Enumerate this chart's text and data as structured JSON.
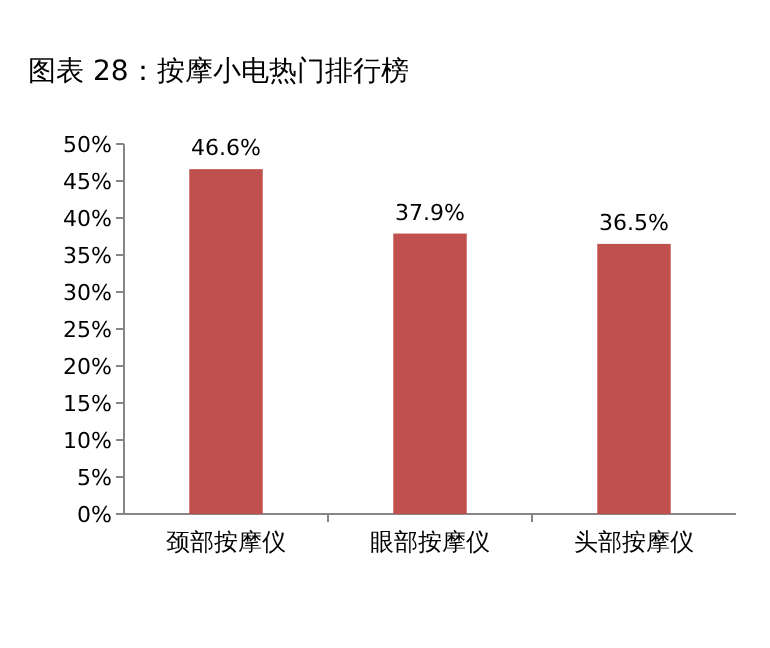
{
  "chart_data": {
    "type": "bar",
    "title": "图表 28：按摩小电热门排行榜",
    "categories": [
      "颈部按摩仪",
      "眼部按摩仪",
      "头部按摩仪"
    ],
    "values": [
      46.6,
      37.9,
      36.5
    ],
    "color": "#c0504d",
    "value_labels": [
      "46.6%",
      "37.9%",
      "36.5%"
    ],
    "ylim": [
      0,
      50
    ],
    "yticks": [
      {
        "value": 0,
        "label": "0%"
      },
      {
        "value": 5,
        "label": "5%"
      },
      {
        "value": 10,
        "label": "10%"
      },
      {
        "value": 15,
        "label": "15%"
      },
      {
        "value": 20,
        "label": "20%"
      },
      {
        "value": 25,
        "label": "25%"
      },
      {
        "value": 30,
        "label": "30%"
      },
      {
        "value": 35,
        "label": "35%"
      },
      {
        "value": 40,
        "label": "40%"
      },
      {
        "value": 45,
        "label": "45%"
      },
      {
        "value": 50,
        "label": "50%"
      }
    ],
    "grid": false
  }
}
